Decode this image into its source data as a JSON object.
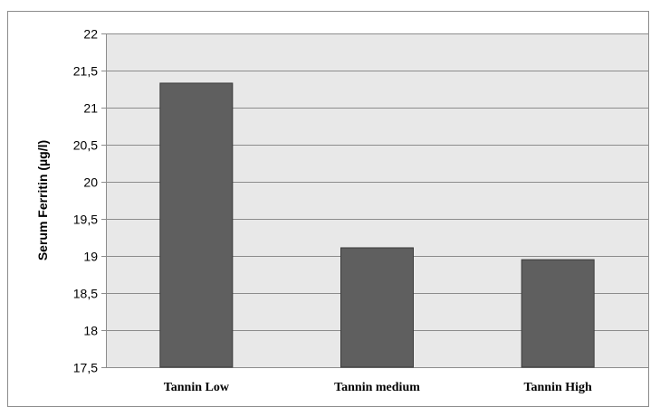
{
  "chart_data": {
    "type": "bar",
    "title": "",
    "xlabel": "",
    "ylabel": "Serum Ferritin (µg/l)",
    "categories": [
      "Tannin Low",
      "Tannin medium",
      "Tannin High"
    ],
    "values": [
      21.33,
      19.11,
      18.95
    ],
    "ylim": [
      17.5,
      22
    ],
    "yticks": [
      17.5,
      18,
      18.5,
      19,
      19.5,
      20,
      20.5,
      21,
      21.5,
      22
    ],
    "ytick_labels": [
      "17,5",
      "18",
      "18,5",
      "19",
      "19,5",
      "20",
      "20,5",
      "21",
      "21,5",
      "22"
    ],
    "grid": true,
    "legend": "none",
    "colors": {
      "bar_fill": "#5f5f5f",
      "bar_stroke": "#3a3a3a",
      "plot_bg": "#e8e8e8",
      "gridline": "#8c8c8c"
    }
  }
}
